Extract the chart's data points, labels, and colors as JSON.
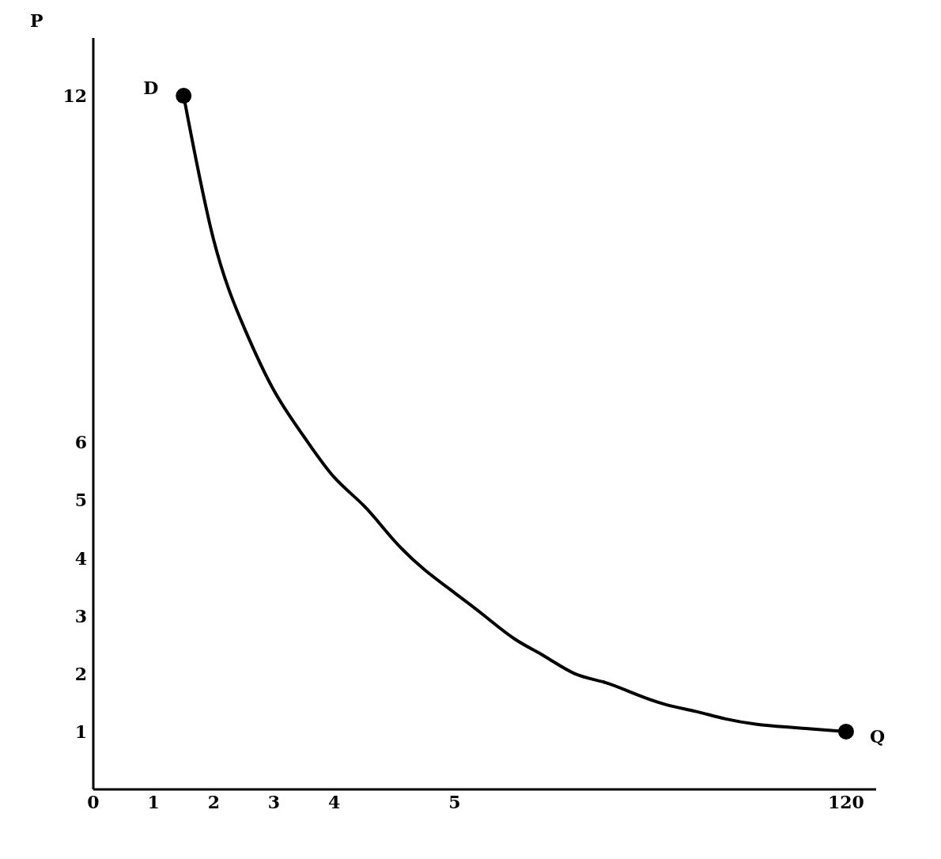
{
  "chart_data": {
    "type": "line",
    "ylabel": "P",
    "categories": [
      "0",
      null,
      "1",
      null,
      "2",
      null,
      "3",
      null,
      "4",
      null,
      null,
      null,
      "5",
      null,
      null,
      null,
      null,
      null,
      null,
      null,
      null,
      null,
      null,
      null,
      null,
      "120",
      null
    ],
    "series": [
      {
        "color": "#000000",
        "marker": "none",
        "values": [
          null,
          null,
          null,
          12,
          9.5,
          8.0,
          6.9,
          6.1,
          5.4,
          4.9,
          4.3,
          3.8,
          3.4,
          3.0,
          2.6,
          2.3,
          2.0,
          1.85,
          1.65,
          1.47,
          1.35,
          1.22,
          1.13,
          1.08,
          1.04,
          1.0,
          null
        ]
      },
      {
        "type": "scatter",
        "color": "#000000",
        "marker": "circle",
        "values": [
          null,
          null,
          null,
          12,
          null,
          null,
          null,
          null,
          null,
          null,
          null,
          null,
          null,
          null,
          null,
          null,
          null,
          null,
          null,
          null,
          null,
          null,
          null,
          null,
          null,
          1.0,
          null
        ]
      }
    ],
    "annotations": [
      "D",
      "Q"
    ],
    "ylim": [
      0,
      13
    ],
    "yticks": [
      1,
      2,
      3,
      4,
      5,
      6,
      12
    ],
    "grid": false,
    "line_style": "solid"
  }
}
